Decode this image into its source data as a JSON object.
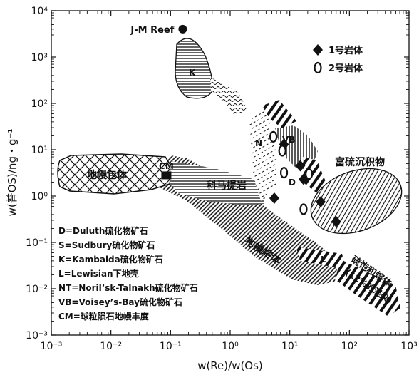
{
  "chart_data": {
    "type": "scatter",
    "title": "",
    "xlabel": "w(Re)/w(Os)",
    "ylabel": "w(普OS)/ng・g⁻¹",
    "x_scale": "log",
    "y_scale": "log",
    "xlim": [
      0.001,
      1000
    ],
    "ylim": [
      0.001,
      10000
    ],
    "x_ticks": [
      {
        "value": 0.001,
        "label": "10⁻³"
      },
      {
        "value": 0.01,
        "label": "10⁻²"
      },
      {
        "value": 0.1,
        "label": "10⁻¹"
      },
      {
        "value": 1,
        "label": "10⁰"
      },
      {
        "value": 10,
        "label": "10¹"
      },
      {
        "value": 100,
        "label": "10²"
      },
      {
        "value": 1000,
        "label": "10³"
      }
    ],
    "y_ticks": [
      {
        "value": 0.001,
        "label": "10⁻³"
      },
      {
        "value": 0.01,
        "label": "10⁻²"
      },
      {
        "value": 0.1,
        "label": "10⁻¹"
      },
      {
        "value": 1,
        "label": "10⁰"
      },
      {
        "value": 10,
        "label": "10¹"
      },
      {
        "value": 100,
        "label": "10²"
      },
      {
        "value": 1000,
        "label": "10³"
      },
      {
        "value": 10000,
        "label": "10⁴"
      }
    ],
    "grid": false,
    "legend_position": "top-right",
    "series": [
      {
        "name": "1号岩体",
        "marker": "filled-diamond",
        "points": [
          {
            "x": 5.5,
            "y": 0.9
          },
          {
            "x": 8.0,
            "y": 13
          },
          {
            "x": 15,
            "y": 4.5
          },
          {
            "x": 17,
            "y": 2.3
          },
          {
            "x": 33,
            "y": 0.75
          },
          {
            "x": 60,
            "y": 0.28
          }
        ]
      },
      {
        "name": "2号岩体",
        "marker": "open-ellipse",
        "points": [
          {
            "x": 5.3,
            "y": 19
          },
          {
            "x": 7.5,
            "y": 9.5
          },
          {
            "x": 8.0,
            "y": 3.2
          },
          {
            "x": 21,
            "y": 3.0
          },
          {
            "x": 17,
            "y": 0.52
          }
        ]
      }
    ],
    "reference_points": [
      {
        "label": "J-M Reef",
        "x": 0.16,
        "y": 4000
      },
      {
        "label": "CM",
        "x": 0.085,
        "y": 2.8
      }
    ],
    "region_labels": {
      "K": "K",
      "mantle_inclusions": "地幔包体",
      "komatiite": "科马提岩",
      "N": "N",
      "VB": "VB",
      "D": "D",
      "sulfide_sediment": "富硫沉积物",
      "mantle_melt": "地幔熔体",
      "L": "L",
      "saturated_melt_1": "硫饱和熔体",
      "saturated_melt_2": "(12%的混染)"
    },
    "legend": {
      "body1": "1号岩体",
      "body2": "2号岩体",
      "abbreviations": [
        "D=Duluth硫化物矿石",
        "S=Sudbury硫化物矿石",
        "K=Kambalda硫化物矿石",
        "L=Lewisian下地壳",
        "NT=Noril’sk-Talnakh硫化物矿石",
        "VB=Voisey’s-Bay硫化物矿石",
        "CM=球粒陨石地幔丰度"
      ]
    }
  }
}
